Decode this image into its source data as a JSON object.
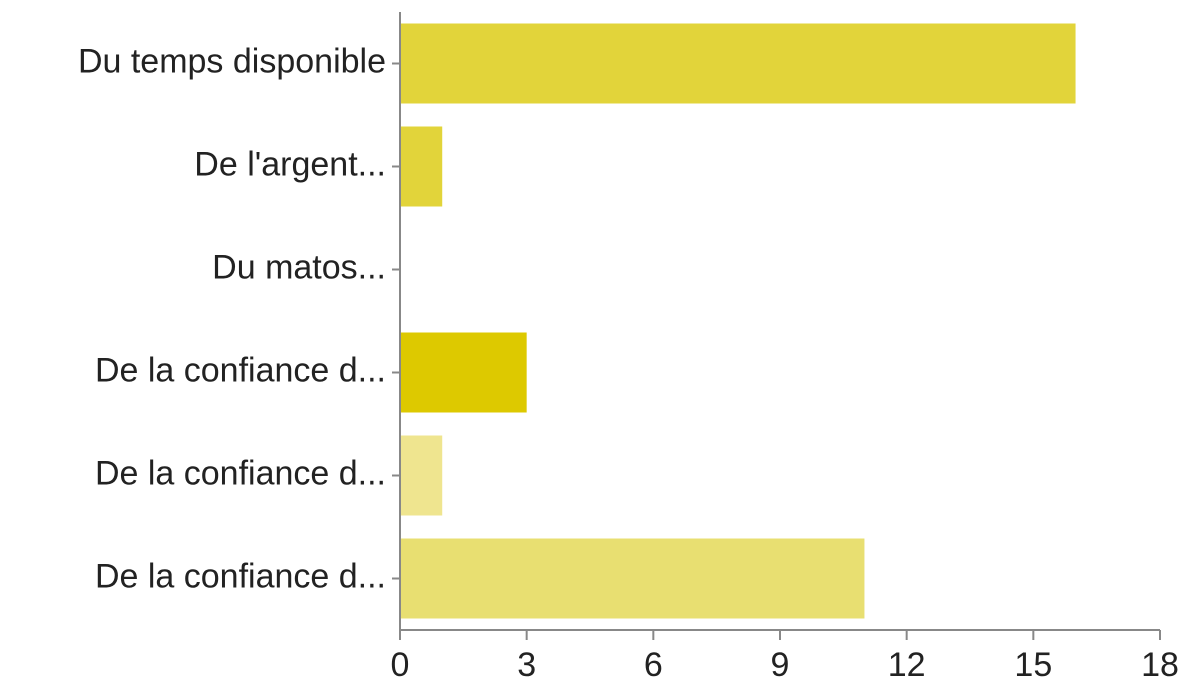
{
  "chart_data": {
    "type": "bar",
    "orientation": "horizontal",
    "categories": [
      "Du temps disponible",
      "De l'argent...",
      "Du matos...",
      "De la confiance d...",
      "De la confiance d...",
      "De la confiance d..."
    ],
    "values": [
      16,
      1,
      0,
      3,
      1,
      11
    ],
    "colors": [
      "#e2d43a",
      "#e2d43a",
      "#e2d43a",
      "#ddc900",
      "#efe58f",
      "#e8df71"
    ],
    "xlim": [
      0,
      18
    ],
    "xticks": [
      "0",
      "3",
      "6",
      "9",
      "12",
      "15",
      "18"
    ],
    "grid": false,
    "legend": "none"
  }
}
